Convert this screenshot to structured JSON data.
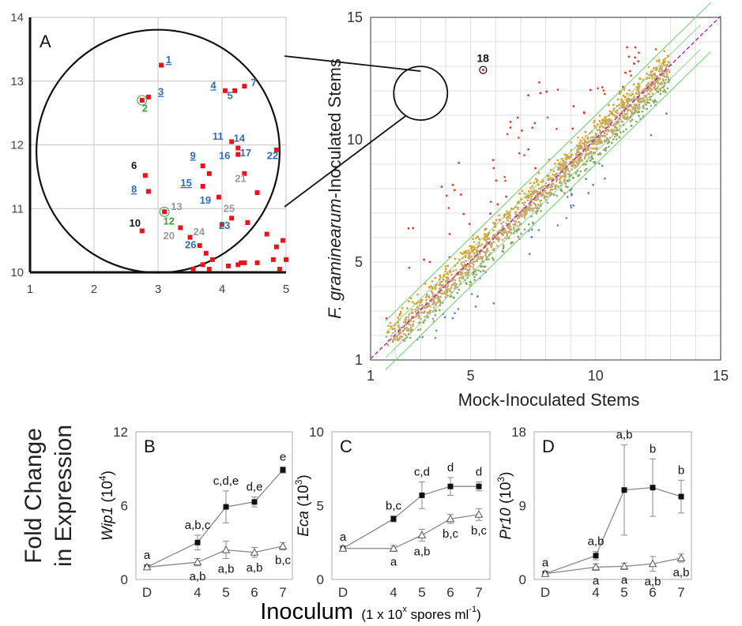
{
  "chart_data": [
    {
      "panel": "A",
      "type": "scatter",
      "x_ticks": [
        "1",
        "2",
        "3",
        "4",
        "5"
      ],
      "y_ticks": [
        "10",
        "11",
        "12",
        "13",
        "14"
      ],
      "xlim": [
        1,
        5
      ],
      "ylim": [
        10,
        14
      ],
      "zoom_circle": {
        "cx": 3,
        "cy": 11.9,
        "r": 1.9
      },
      "points": [
        [
          3.05,
          13.25
        ],
        [
          2.85,
          12.75
        ],
        [
          2.75,
          12.7
        ],
        [
          4.05,
          12.85
        ],
        [
          4.2,
          12.85
        ],
        [
          4.35,
          12.92
        ],
        [
          4.15,
          12.05
        ],
        [
          4.25,
          11.95
        ],
        [
          4.25,
          11.85
        ],
        [
          4.85,
          11.92
        ],
        [
          3.7,
          11.67
        ],
        [
          3.8,
          11.55
        ],
        [
          2.8,
          11.52
        ],
        [
          2.85,
          11.27
        ],
        [
          4.35,
          11.55
        ],
        [
          3.7,
          11.35
        ],
        [
          3.95,
          11.18
        ],
        [
          4.55,
          11.25
        ],
        [
          3.1,
          10.95
        ],
        [
          2.75,
          10.65
        ],
        [
          3.35,
          10.7
        ],
        [
          3.5,
          10.55
        ],
        [
          3.65,
          10.42
        ],
        [
          3.75,
          10.3
        ],
        [
          4.0,
          10.75
        ],
        [
          4.15,
          10.85
        ],
        [
          4.4,
          10.78
        ],
        [
          4.7,
          10.6
        ],
        [
          4.95,
          10.5
        ],
        [
          4.85,
          10.4
        ],
        [
          4.3,
          10.15
        ],
        [
          4.35,
          10.15
        ],
        [
          4.55,
          10.15
        ],
        [
          4.8,
          10.2
        ],
        [
          5.0,
          10.2
        ],
        [
          3.8,
          10.05
        ],
        [
          3.55,
          10.05
        ],
        [
          3.85,
          10.2
        ],
        [
          4.1,
          10.1
        ],
        [
          4.9,
          10.05
        ],
        [
          4.25,
          10.12
        ],
        [
          3.7,
          10.12
        ]
      ],
      "point_color": "#e8141a",
      "labels": [
        {
          "t": "1",
          "x": 3.12,
          "y": 13.28,
          "c": "#2f6db5",
          "u": true
        },
        {
          "t": "2",
          "x": 2.75,
          "y": 12.52,
          "c": "#3aa33a",
          "u": false
        },
        {
          "t": "3",
          "x": 3.0,
          "y": 12.78,
          "c": "#2f6db5",
          "u": true
        },
        {
          "t": "4",
          "x": 3.82,
          "y": 12.88,
          "c": "#2f6db5",
          "u": true
        },
        {
          "t": "5",
          "x": 4.08,
          "y": 12.72,
          "c": "#2f6db5",
          "u": false
        },
        {
          "t": "6",
          "x": 2.58,
          "y": 11.62,
          "c": "#111111",
          "u": false
        },
        {
          "t": "7",
          "x": 4.45,
          "y": 12.92,
          "c": "#2f6db5",
          "u": false
        },
        {
          "t": "8",
          "x": 2.58,
          "y": 11.25,
          "c": "#2f6db5",
          "u": true
        },
        {
          "t": "9",
          "x": 3.5,
          "y": 11.78,
          "c": "#2f6db5",
          "u": true
        },
        {
          "t": "10",
          "x": 2.55,
          "y": 10.72,
          "c": "#111111",
          "u": false
        },
        {
          "t": "11",
          "x": 3.85,
          "y": 12.08,
          "c": "#2f6db5",
          "u": false
        },
        {
          "t": "12",
          "x": 3.08,
          "y": 10.75,
          "c": "#3aa33a",
          "u": false
        },
        {
          "t": "13",
          "x": 3.2,
          "y": 10.98,
          "c": "#999999",
          "u": false
        },
        {
          "t": "14",
          "x": 4.18,
          "y": 12.05,
          "c": "#2f6db5",
          "u": false
        },
        {
          "t": "15",
          "x": 3.35,
          "y": 11.35,
          "c": "#2f6db5",
          "u": true
        },
        {
          "t": "16",
          "x": 3.95,
          "y": 11.78,
          "c": "#2f6db5",
          "u": false
        },
        {
          "t": "17",
          "x": 4.28,
          "y": 11.82,
          "c": "#2f6db5",
          "u": false
        },
        {
          "t": "19",
          "x": 3.65,
          "y": 11.08,
          "c": "#2f6db5",
          "u": false
        },
        {
          "t": "20",
          "x": 3.08,
          "y": 10.52,
          "c": "#999999",
          "u": false
        },
        {
          "t": "21",
          "x": 4.2,
          "y": 11.42,
          "c": "#999999",
          "u": false
        },
        {
          "t": "22",
          "x": 4.7,
          "y": 11.78,
          "c": "#2f6db5",
          "u": false
        },
        {
          "t": "23",
          "x": 3.95,
          "y": 10.68,
          "c": "#2f6db5",
          "u": false
        },
        {
          "t": "24",
          "x": 3.55,
          "y": 10.58,
          "c": "#999999",
          "u": false
        },
        {
          "t": "25",
          "x": 4.02,
          "y": 10.95,
          "c": "#999999",
          "u": false
        },
        {
          "t": "26",
          "x": 3.42,
          "y": 10.38,
          "c": "#2f6db5",
          "u": false
        }
      ]
    },
    {
      "panel": "main",
      "type": "scatter",
      "xlabel": "Mock-Inoculated Stems",
      "ylabel_italic": "F. graminearum",
      "ylabel_rest": "-Inoculated Stems",
      "x_ticks": [
        "1",
        "5",
        "10",
        "15"
      ],
      "y_ticks": [
        "1",
        "5",
        "10",
        "15"
      ],
      "xlim": [
        1,
        15
      ],
      "ylim": [
        1,
        15
      ],
      "highlight_point": {
        "label": "18",
        "x": 5.5,
        "y": 12.85
      },
      "zoom_circle": {
        "cx": 3,
        "cy": 11.9,
        "r": 1.9
      },
      "diagonal_color": "#b5179e",
      "fold_lines_color": "#7cd67c",
      "point_colors": {
        "up": "#e23b1f",
        "mid": "#e89a1a",
        "neutral": "#c5a96a",
        "down": "#6b7fc0",
        "green": "#8aa860"
      }
    },
    {
      "panel": "B",
      "type": "line",
      "ylabel_gene": "Wip1",
      "ylabel_unit": "(10",
      "ylabel_exp": "4",
      "ylim": [
        0,
        12
      ],
      "y_ticks": [
        "0",
        "6",
        "12"
      ],
      "x_ticks": [
        "D",
        "4",
        "5",
        "6",
        "7"
      ],
      "x": [
        "D",
        "4",
        "5",
        "6",
        "7"
      ],
      "series": [
        {
          "values": [
            1.0,
            3.0,
            5.9,
            6.3,
            8.9
          ],
          "err": [
            0.15,
            0.6,
            1.3,
            0.4,
            0.25
          ],
          "marker": "square"
        },
        {
          "values": [
            1.0,
            1.4,
            2.4,
            2.2,
            2.7
          ],
          "err": [
            0.15,
            0.3,
            0.7,
            0.4,
            0.3
          ],
          "marker": "triangle"
        }
      ],
      "letters_top": [
        "a",
        "a,b,c",
        "c,d,e",
        "d,e",
        "e"
      ],
      "letters_bottom": [
        "",
        "a,b",
        "a,b",
        "a,b",
        "b,c"
      ]
    },
    {
      "panel": "C",
      "type": "line",
      "ylabel_gene": "Eca",
      "ylabel_unit": "(10",
      "ylabel_exp": "3",
      "ylim": [
        0,
        10
      ],
      "y_ticks": [
        "0",
        "5",
        "10"
      ],
      "x_ticks": [
        "D",
        "4",
        "5",
        "6",
        "7"
      ],
      "x": [
        "D",
        "4",
        "5",
        "6",
        "7"
      ],
      "series": [
        {
          "values": [
            2.1,
            4.1,
            5.7,
            6.3,
            6.3
          ],
          "err": [
            0.1,
            0.2,
            0.9,
            0.6,
            0.3
          ],
          "marker": "square"
        },
        {
          "values": [
            2.1,
            2.1,
            3.0,
            4.1,
            4.4
          ],
          "err": [
            0.1,
            0.2,
            0.4,
            0.3,
            0.4
          ],
          "marker": "triangle"
        }
      ],
      "letters_top": [
        "a",
        "b,c",
        "c,d",
        "d",
        "d"
      ],
      "letters_bottom": [
        "",
        "a",
        "a,b",
        "b,c",
        "b,c"
      ]
    },
    {
      "panel": "D",
      "type": "line",
      "ylabel_gene": "Pr10",
      "ylabel_unit": "(10",
      "ylabel_exp": "3",
      "ylim": [
        0,
        18
      ],
      "y_ticks": [
        "0",
        "9",
        "18"
      ],
      "x_ticks": [
        "D",
        "4",
        "5",
        "6",
        "7"
      ],
      "x": [
        "D",
        "4",
        "5",
        "6",
        "7"
      ],
      "series": [
        {
          "values": [
            0.7,
            2.9,
            10.9,
            11.2,
            10.1
          ],
          "err": [
            0.1,
            0.5,
            5.5,
            3.5,
            2.0
          ],
          "marker": "square"
        },
        {
          "values": [
            0.7,
            1.5,
            1.6,
            1.9,
            2.6
          ],
          "err": [
            0.1,
            0.4,
            0.4,
            0.9,
            0.5
          ],
          "marker": "triangle"
        }
      ],
      "letters_top": [
        "a",
        "a,b",
        "a,b",
        "b",
        "b"
      ],
      "letters_bottom": [
        "",
        "a",
        "a",
        "a,b",
        "a,b"
      ]
    }
  ],
  "fold_change_label_1": "Fold Change",
  "fold_change_label_2": "in Expression",
  "inoculum_label": "Inoculum",
  "inoculum_units_pre": "(1 x 10",
  "inoculum_units_exp": "x",
  "inoculum_units_mid": " spores ml",
  "inoculum_units_exp2": "-1",
  "inoculum_units_post": ")"
}
